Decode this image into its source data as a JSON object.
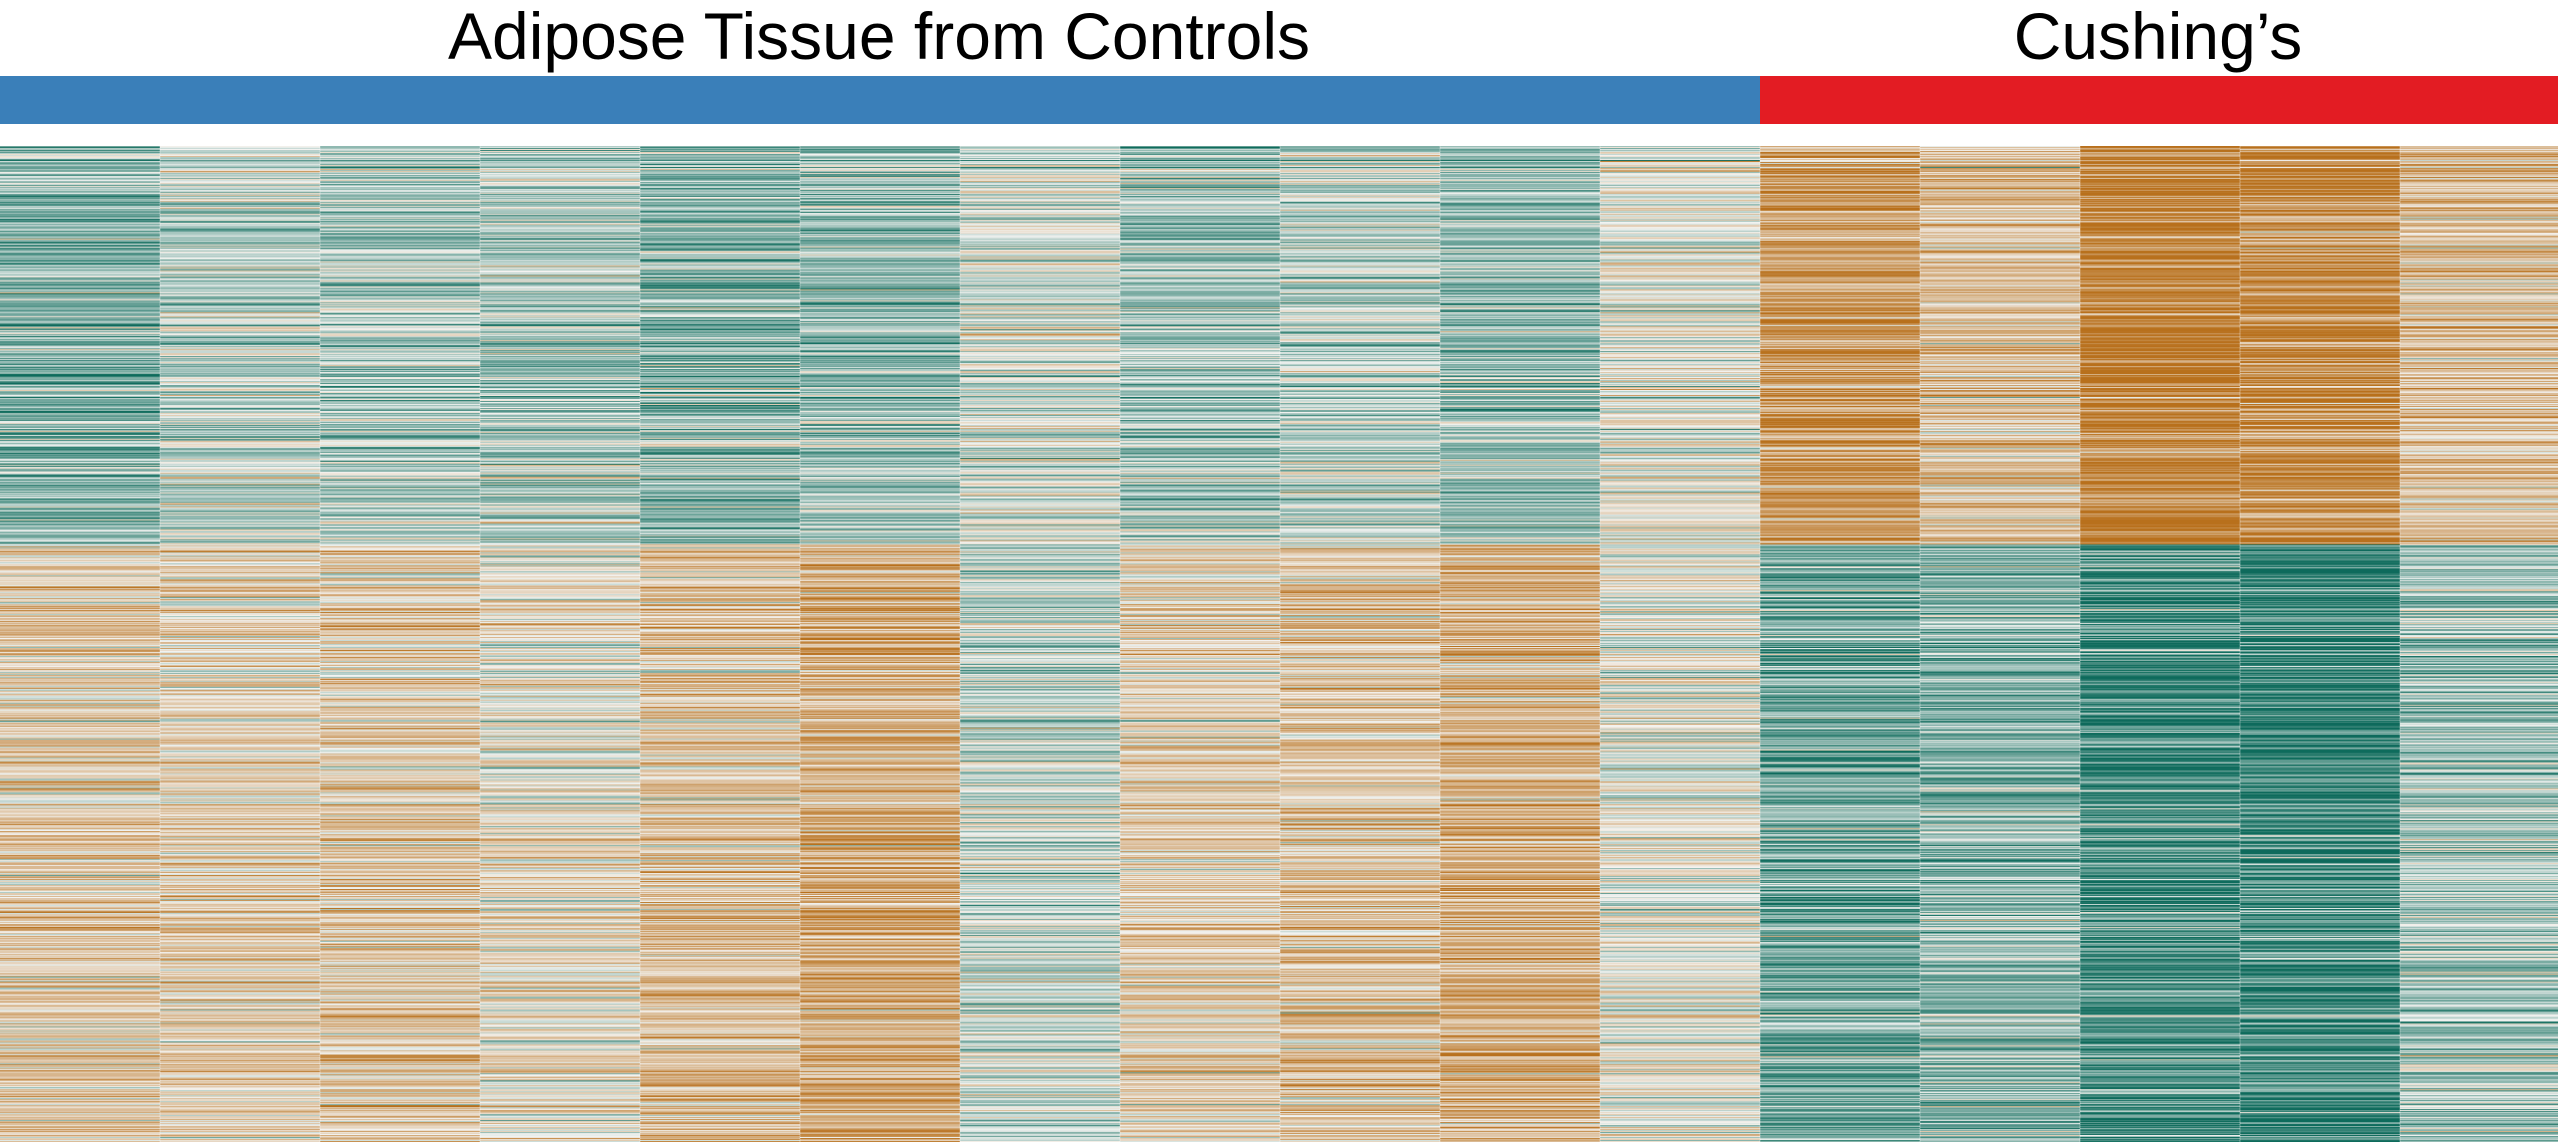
{
  "chart_data": {
    "type": "heatmap",
    "title": "",
    "xlabel": "",
    "ylabel": "",
    "groups": [
      {
        "label": "Adipose Tissue from Controls",
        "color": "#3a7fb9",
        "n_samples": 11
      },
      {
        "label": "Cushing’s",
        "color": "#e31c23",
        "n_samples": 5
      }
    ],
    "color_scale": {
      "low": "#0e6b5c",
      "mid": "#f4f4f2",
      "high": "#b8701c",
      "range": [
        -2,
        2
      ],
      "description": "diverging teal (down) to brown (up), z-score per gene"
    },
    "gene_clusters": [
      {
        "name": "cluster_up_in_cushings",
        "fraction_of_rows": 0.4
      },
      {
        "name": "cluster_down_in_cushings",
        "fraction_of_rows": 0.6
      }
    ],
    "sample_mean_z_by_cluster": {
      "cluster_up_in_cushings": [
        -0.8,
        -0.4,
        -0.5,
        -0.5,
        -0.8,
        -0.7,
        -0.2,
        -0.6,
        -0.4,
        -0.7,
        0.0,
        1.2,
        0.6,
        1.6,
        1.5,
        0.6
      ],
      "cluster_down_in_cushings": [
        0.5,
        0.4,
        0.5,
        0.2,
        0.6,
        0.9,
        -0.3,
        0.4,
        0.6,
        0.9,
        0.0,
        -1.0,
        -0.8,
        -1.4,
        -1.5,
        -0.6
      ]
    },
    "n_genes_approx": 1000,
    "grid": false,
    "legend": "none"
  }
}
